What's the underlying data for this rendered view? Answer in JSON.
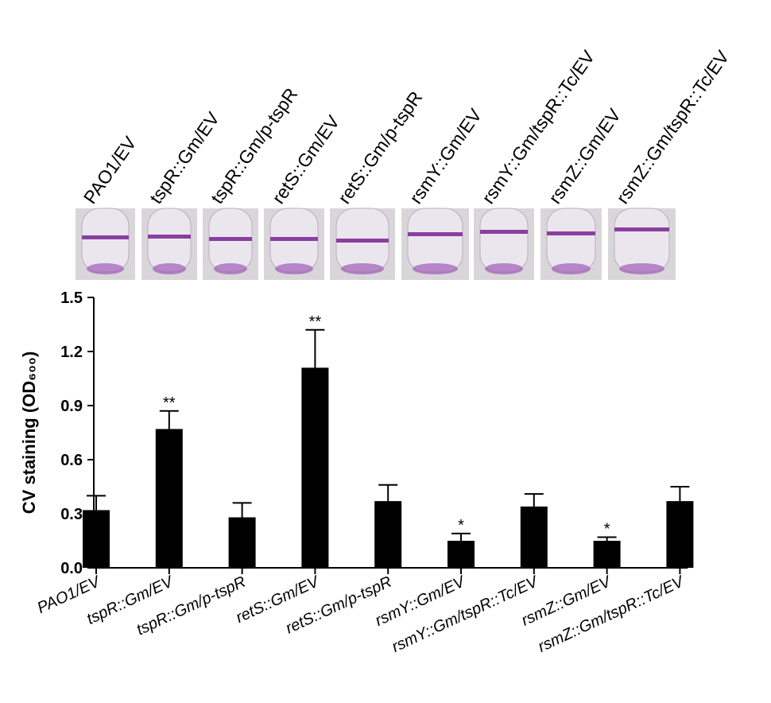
{
  "chart_data": {
    "type": "bar",
    "categories": [
      "PAO1/EV",
      "tspR::Gm/EV",
      "tspR::Gm/p-tspR",
      "retS::Gm/EV",
      "retS::Gm/p-tspR",
      "rsmY::Gm/EV",
      "rsmY::Gm/tspR::Tc/EV",
      "rsmZ::Gm/EV",
      "rsmZ::Gm/tspR::Tc/EV"
    ],
    "values": [
      0.32,
      0.77,
      0.28,
      1.11,
      0.37,
      0.15,
      0.34,
      0.15,
      0.37
    ],
    "errors": [
      0.08,
      0.1,
      0.08,
      0.21,
      0.09,
      0.04,
      0.07,
      0.02,
      0.08
    ],
    "significance": [
      null,
      "**",
      null,
      "**",
      null,
      "*",
      null,
      "*",
      null
    ],
    "color": "#000000",
    "ylabel": "CV staining (OD₆₀₀)",
    "ylim": [
      0,
      1.5
    ],
    "yticks": [
      {
        "value": 0,
        "label": "0.0"
      },
      0.3,
      0.6,
      0.9,
      1.2,
      1.5
    ],
    "grid": false
  }
}
